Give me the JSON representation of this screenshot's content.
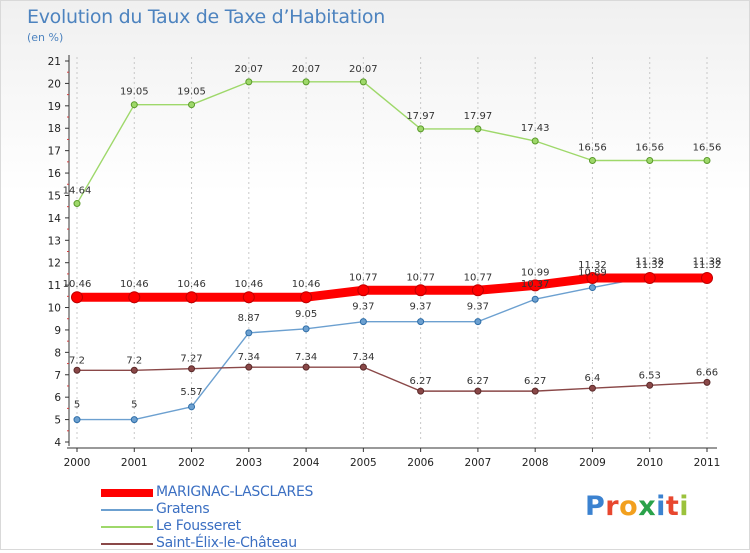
{
  "title": "Evolution du Taux de Taxe d’Habitation",
  "subtitle": "(en %)",
  "logo": {
    "text": "Proxiti",
    "letters": [
      {
        "ch": "P",
        "color": "#3b82d0"
      },
      {
        "ch": "r",
        "color": "#e8472f"
      },
      {
        "ch": "o",
        "color": "#f2a01e"
      },
      {
        "ch": "x",
        "color": "#2aa24a"
      },
      {
        "ch": "i",
        "color": "#3b82d0"
      },
      {
        "ch": "t",
        "color": "#e8472f"
      },
      {
        "ch": "i",
        "color": "#9bc23c"
      }
    ]
  },
  "chart_data": {
    "type": "line",
    "title": "Evolution du Taux de Taxe d’Habitation",
    "subtitle": "(en %)",
    "xlabel": "",
    "ylabel": "",
    "x": [
      "2000",
      "2001",
      "2002",
      "2003",
      "2004",
      "2005",
      "2006",
      "2007",
      "2008",
      "2009",
      "2010",
      "2011"
    ],
    "ylim": [
      4,
      21
    ],
    "yticks": [
      "4",
      "5",
      "6",
      "7",
      "8",
      "9",
      "10",
      "11",
      "12",
      "13",
      "14",
      "15",
      "16",
      "17",
      "18",
      "19",
      "20",
      "21"
    ],
    "grid": "vertical",
    "legend_position": "bottom-left",
    "series": [
      {
        "name": "MARIGNAC-LASCLARES",
        "color": "#ff0000",
        "width": 9,
        "values": [
          10.46,
          10.46,
          10.46,
          10.46,
          10.46,
          10.77,
          10.77,
          10.77,
          10.99,
          11.32,
          11.32,
          11.32
        ],
        "labels": [
          "10.46",
          "10.46",
          "10.46",
          "10.46",
          "10.46",
          "10.77",
          "10.77",
          "10.77",
          "10.99",
          "11.32",
          "11.32",
          "11.32"
        ]
      },
      {
        "name": "Gratens",
        "color": "#6ca0d0",
        "width": 1.4,
        "values": [
          5,
          5,
          5.57,
          8.87,
          9.05,
          9.37,
          9.37,
          9.37,
          10.37,
          10.89,
          11.38,
          11.38
        ],
        "labels": [
          "5",
          "5",
          "5.57",
          "8.87",
          "9.05",
          "9.37",
          "9.37",
          "9.37",
          "10.37",
          "10.89",
          "11.38",
          "11.38"
        ]
      },
      {
        "name": "Le Fousseret",
        "color": "#9ed86a",
        "width": 1.4,
        "values": [
          14.64,
          19.05,
          19.05,
          20.07,
          20.07,
          20.07,
          17.97,
          17.97,
          17.43,
          16.56,
          16.56,
          16.56
        ],
        "labels": [
          "14.64",
          "19.05",
          "19.05",
          "20.07",
          "20.07",
          "20.07",
          "17.97",
          "17.97",
          "17.43",
          "16.56",
          "16.56",
          "16.56"
        ]
      },
      {
        "name": "Saint-Élix-le-Château",
        "color": "#8a4848",
        "width": 1.4,
        "values": [
          7.2,
          7.2,
          7.27,
          7.34,
          7.34,
          7.34,
          6.27,
          6.27,
          6.27,
          6.4,
          6.53,
          6.66
        ],
        "labels": [
          "7.2",
          "7.2",
          "7.27",
          "7.34",
          "7.34",
          "7.34",
          "6.27",
          "6.27",
          "6.27",
          "6.4",
          "6.53",
          "6.66"
        ]
      }
    ]
  }
}
